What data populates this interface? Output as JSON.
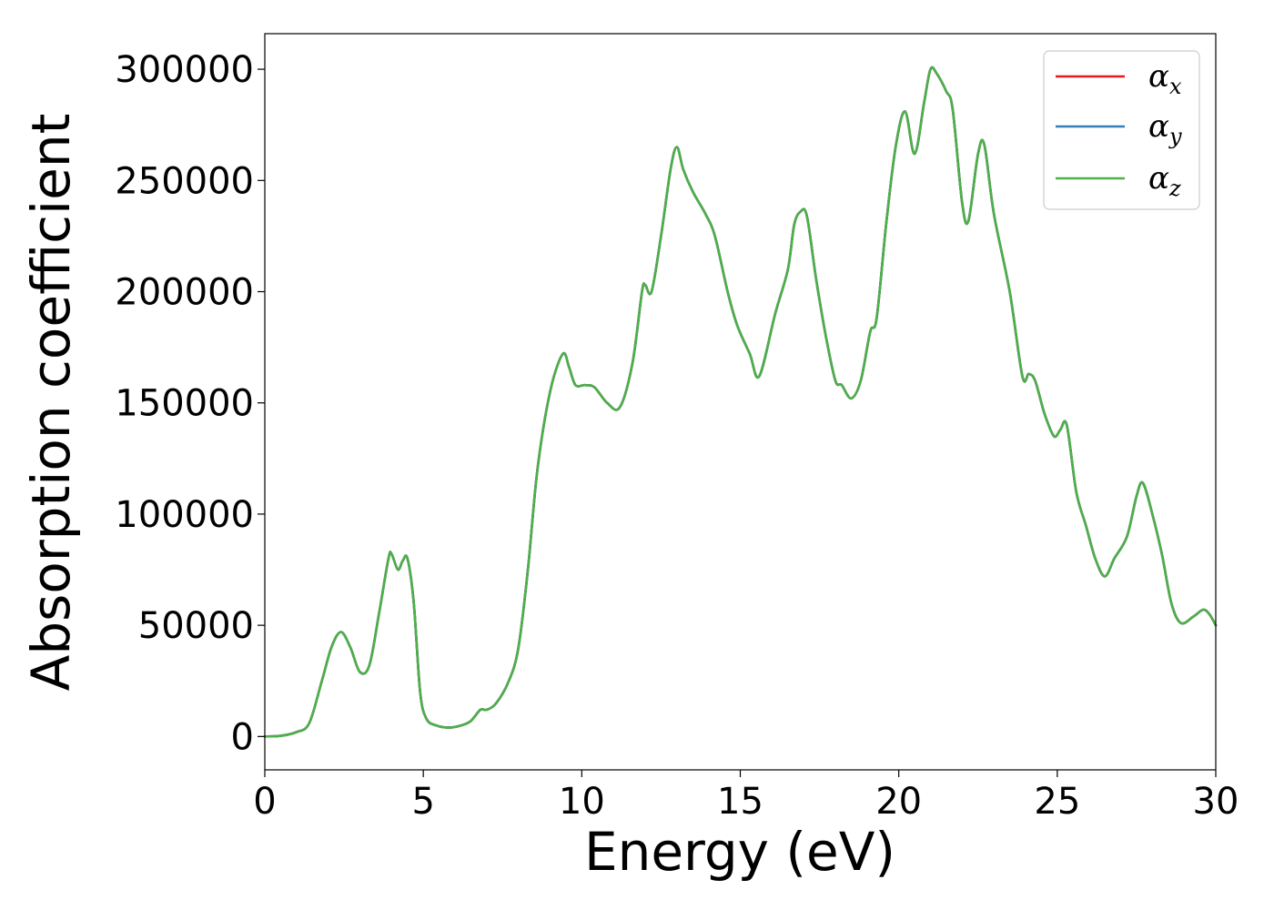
{
  "chart_data": {
    "type": "line",
    "title": "",
    "xlabel": "Energy (eV)",
    "ylabel": "Absorption coefficient",
    "xlim": [
      0,
      30
    ],
    "ylim": [
      -15000,
      316000
    ],
    "xticks": [
      0,
      5,
      10,
      15,
      20,
      25,
      30
    ],
    "xtick_labels": [
      "0",
      "5",
      "10",
      "15",
      "20",
      "25",
      "30"
    ],
    "yticks": [
      0,
      50000,
      100000,
      150000,
      200000,
      250000,
      300000
    ],
    "ytick_labels": [
      "0",
      "50000",
      "100000",
      "150000",
      "200000",
      "250000",
      "300000"
    ],
    "grid": false,
    "legend": {
      "position": "top-right",
      "entries": [
        {
          "symbol": "α",
          "subscript": "x",
          "color": "#e41a1c"
        },
        {
          "symbol": "α",
          "subscript": "y",
          "color": "#377eb8"
        },
        {
          "symbol": "α",
          "subscript": "z",
          "color": "#4daf4a"
        }
      ]
    },
    "x": [
      0,
      0.5,
      1.0,
      1.4,
      1.8,
      2.1,
      2.4,
      2.7,
      3.0,
      3.3,
      3.6,
      3.9,
      4.0,
      4.2,
      4.35,
      4.5,
      4.7,
      4.9,
      5.1,
      5.4,
      5.8,
      6.2,
      6.5,
      6.8,
      7.0,
      7.3,
      7.7,
      8.0,
      8.3,
      8.6,
      9.0,
      9.4,
      9.6,
      9.8,
      10.1,
      10.4,
      10.8,
      11.2,
      11.6,
      11.9,
      12.0,
      12.2,
      12.5,
      12.8,
      13.0,
      13.2,
      13.5,
      13.9,
      14.2,
      14.6,
      14.9,
      15.3,
      15.6,
      16.1,
      16.5,
      16.7,
      16.9,
      17.1,
      17.4,
      17.7,
      18.0,
      18.2,
      18.5,
      18.8,
      19.1,
      19.3,
      19.6,
      19.9,
      20.2,
      20.5,
      20.8,
      21.0,
      21.2,
      21.5,
      21.7,
      22.0,
      22.2,
      22.5,
      22.7,
      23.0,
      23.5,
      23.9,
      24.1,
      24.3,
      24.6,
      24.9,
      25.1,
      25.3,
      25.6,
      25.9,
      26.2,
      26.5,
      26.8,
      27.2,
      27.5,
      27.7,
      28.0,
      28.3,
      28.6,
      28.9,
      29.3,
      29.6,
      29.8,
      30.0
    ],
    "series": [
      {
        "name": "α_x",
        "color": "#e41a1c",
        "values": [
          0,
          300,
          2000,
          6000,
          25000,
          40000,
          47000,
          40000,
          29000,
          32000,
          55000,
          80000,
          82000,
          75000,
          79000,
          80000,
          60000,
          20000,
          8000,
          5000,
          4000,
          5000,
          7000,
          12000,
          12000,
          15000,
          25000,
          40000,
          75000,
          120000,
          155000,
          172000,
          166000,
          158000,
          158000,
          157000,
          150000,
          148000,
          168000,
          200000,
          203000,
          200000,
          225000,
          255000,
          265000,
          255000,
          245000,
          235000,
          225000,
          200000,
          185000,
          172000,
          162000,
          190000,
          210000,
          230000,
          236000,
          234000,
          205000,
          180000,
          160000,
          158000,
          152000,
          160000,
          182000,
          188000,
          230000,
          265000,
          281000,
          262000,
          285000,
          300000,
          298000,
          290000,
          282000,
          240000,
          232000,
          262000,
          266000,
          235000,
          200000,
          162000,
          163000,
          160000,
          145000,
          135000,
          138000,
          140000,
          110000,
          95000,
          80000,
          72000,
          80000,
          90000,
          108000,
          114000,
          100000,
          82000,
          60000,
          51000,
          54000,
          57000,
          55000,
          50000
        ]
      },
      {
        "name": "α_y",
        "color": "#377eb8",
        "values": [
          0,
          300,
          2000,
          6000,
          25000,
          40000,
          47000,
          40000,
          29000,
          32000,
          55000,
          80000,
          82000,
          75000,
          79000,
          80000,
          60000,
          20000,
          8000,
          5000,
          4000,
          5000,
          7000,
          12000,
          12000,
          15000,
          25000,
          40000,
          75000,
          120000,
          155000,
          172000,
          166000,
          158000,
          158000,
          157000,
          150000,
          148000,
          168000,
          200000,
          203000,
          200000,
          225000,
          255000,
          265000,
          255000,
          245000,
          235000,
          225000,
          200000,
          185000,
          172000,
          162000,
          190000,
          210000,
          230000,
          236000,
          234000,
          205000,
          180000,
          160000,
          158000,
          152000,
          160000,
          182000,
          188000,
          230000,
          265000,
          281000,
          262000,
          285000,
          300000,
          298000,
          290000,
          282000,
          240000,
          232000,
          262000,
          266000,
          235000,
          200000,
          162000,
          163000,
          160000,
          145000,
          135000,
          138000,
          140000,
          110000,
          95000,
          80000,
          72000,
          80000,
          90000,
          108000,
          114000,
          100000,
          82000,
          60000,
          51000,
          54000,
          57000,
          55000,
          50000
        ]
      },
      {
        "name": "α_z",
        "color": "#4daf4a",
        "values": [
          0,
          300,
          2000,
          6000,
          25000,
          40000,
          47000,
          40000,
          29000,
          32000,
          55000,
          80000,
          82000,
          75000,
          79000,
          80000,
          60000,
          20000,
          8000,
          5000,
          4000,
          5000,
          7000,
          12000,
          12000,
          15000,
          25000,
          40000,
          75000,
          120000,
          155000,
          172000,
          166000,
          158000,
          158000,
          157000,
          150000,
          148000,
          168000,
          200000,
          203000,
          200000,
          225000,
          255000,
          265000,
          255000,
          245000,
          235000,
          225000,
          200000,
          185000,
          172000,
          162000,
          190000,
          210000,
          230000,
          236000,
          234000,
          205000,
          180000,
          160000,
          158000,
          152000,
          160000,
          182000,
          188000,
          230000,
          265000,
          281000,
          262000,
          285000,
          300000,
          298000,
          290000,
          282000,
          240000,
          232000,
          262000,
          266000,
          235000,
          200000,
          162000,
          163000,
          160000,
          145000,
          135000,
          138000,
          140000,
          110000,
          95000,
          80000,
          72000,
          80000,
          90000,
          108000,
          114000,
          100000,
          82000,
          60000,
          51000,
          54000,
          57000,
          55000,
          50000
        ]
      }
    ]
  }
}
